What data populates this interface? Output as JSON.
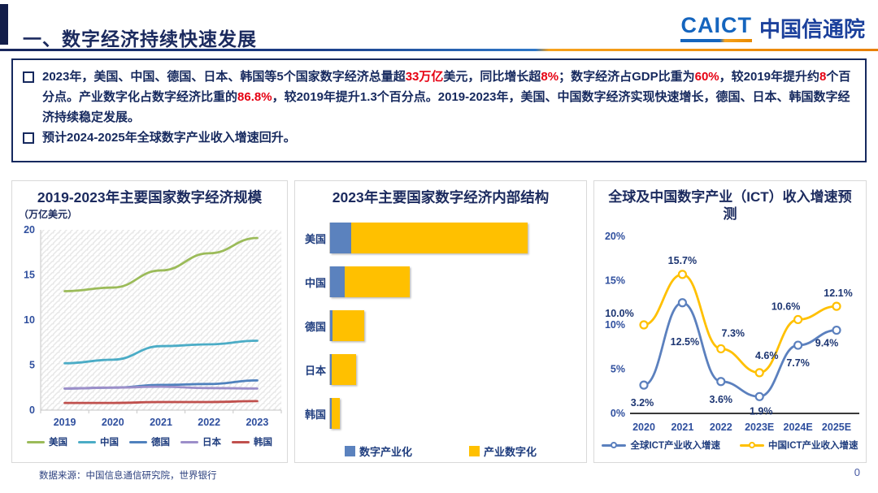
{
  "header": {
    "title": "一、数字经济持续快速发展",
    "logo": {
      "caict": "CAICT",
      "cn": "中国信通院"
    }
  },
  "summary": {
    "bullet1_segments": [
      {
        "t": "2023年，美国、中国、德国、日本、韩国等5个国家数字经济总量超",
        "c": "navy"
      },
      {
        "t": "33万亿",
        "c": "red"
      },
      {
        "t": "美元，同比增长超",
        "c": "navy"
      },
      {
        "t": "8%",
        "c": "red"
      },
      {
        "t": "；数字经济占GDP比重为",
        "c": "navy"
      },
      {
        "t": "60%",
        "c": "red"
      },
      {
        "t": "，较2019年提升约",
        "c": "navy"
      },
      {
        "t": "8",
        "c": "red"
      },
      {
        "t": "个百分点。产业数字化占数字经济比重的",
        "c": "navy"
      },
      {
        "t": "86.8%",
        "c": "red"
      },
      {
        "t": "，较2019年提升1.3个百分点。2019-2023年，美国、中国数字经济实现快速增长，德国、日本、韩国数字经济持续稳定发展。",
        "c": "navy"
      }
    ],
    "bullet2": "预计2024-2025年全球数字产业收入增速回升。"
  },
  "chart_data": [
    {
      "type": "line",
      "title": "2019-2023年主要国家数字经济规模",
      "unit_label": "（万亿美元）",
      "x": [
        "2019",
        "2020",
        "2021",
        "2022",
        "2023"
      ],
      "series": [
        {
          "name": "美国",
          "color": "#9bbb59",
          "values": [
            13.2,
            13.6,
            15.5,
            17.4,
            19.1
          ]
        },
        {
          "name": "中国",
          "color": "#4bacc6",
          "values": [
            5.2,
            5.6,
            7.1,
            7.3,
            7.7
          ]
        },
        {
          "name": "德国",
          "color": "#4f81bd",
          "values": [
            2.4,
            2.5,
            2.8,
            2.9,
            3.3
          ]
        },
        {
          "name": "日本",
          "color": "#9c8ec9",
          "values": [
            2.4,
            2.5,
            2.6,
            2.45,
            2.4
          ]
        },
        {
          "name": "韩国",
          "color": "#c0504d",
          "values": [
            0.8,
            0.8,
            0.9,
            0.9,
            1.0
          ]
        }
      ],
      "ylim": [
        0,
        20
      ],
      "yticks": [
        0,
        5,
        10,
        15,
        20
      ],
      "grid": false,
      "plot_background": "diagonal-hatch",
      "legend_position": "bottom"
    },
    {
      "type": "bar",
      "orientation": "horizontal",
      "stacked": true,
      "title": "2023年主要国家数字经济内部结构",
      "categories": [
        "美国",
        "中国",
        "德国",
        "日本",
        "韩国"
      ],
      "series": [
        {
          "name": "数字产业化",
          "color": "#5b82be",
          "values": [
            2.0,
            1.4,
            0.2,
            0.15,
            0.15
          ]
        },
        {
          "name": "产业数字化",
          "color": "#ffc000",
          "values": [
            17.0,
            6.3,
            3.1,
            2.35,
            0.8
          ]
        }
      ],
      "xlim": [
        0,
        24
      ],
      "grid": false,
      "legend_position": "bottom"
    },
    {
      "type": "line",
      "title": "全球及中国数字产业（ICT）收入增速预测",
      "x": [
        "2020",
        "2021",
        "2022",
        "2023E",
        "2024E",
        "2025E"
      ],
      "series": [
        {
          "name": "全球ICT产业收入增速",
          "color": "#5b80be",
          "values": [
            3.2,
            12.5,
            3.6,
            1.9,
            7.7,
            9.4
          ]
        },
        {
          "name": "中国ICT产业收入增速",
          "color": "#ffc000",
          "values": [
            10.0,
            15.7,
            7.3,
            4.6,
            10.6,
            12.1
          ]
        }
      ],
      "ylim": [
        0,
        20
      ],
      "yticks": [
        0,
        5,
        10,
        15,
        20
      ],
      "ytick_suffix": "%",
      "data_labels": true,
      "marker": "circle-open",
      "grid": false,
      "legend_position": "bottom"
    }
  ],
  "footer": {
    "source": "数据来源：中国信息通信研究院，世界银行",
    "page": "0"
  },
  "colors": {
    "navy_text": "#16295e",
    "red_highlight": "#e60012",
    "accent_orange": "#f6a21d",
    "caict_blue": "#1565be",
    "panel_border": "#d9d9d9",
    "bar_blue": "#5b82be",
    "bar_yellow": "#ffc000"
  }
}
